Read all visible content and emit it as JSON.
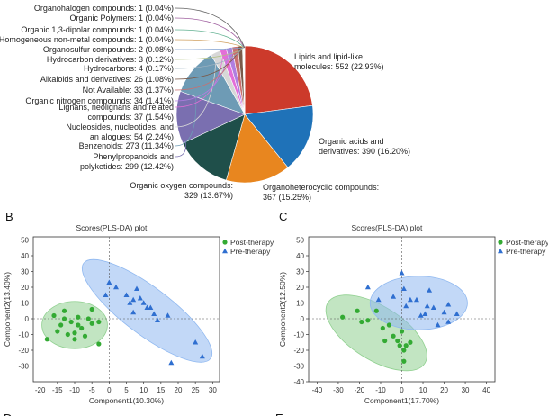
{
  "panel_labels": {
    "b": "B",
    "c": "C",
    "d": "D",
    "e": "E"
  },
  "chart_data": [
    {
      "type": "pie",
      "title": "",
      "slices": [
        {
          "name": "Lipids and lipid-like molecules",
          "count": 552,
          "percent": 22.93,
          "label": "Lipids and lipid-like molecules: 552 (22.93%)",
          "color": "#cc3a2b"
        },
        {
          "name": "Organic acids and derivatives",
          "count": 390,
          "percent": 16.2,
          "label": "Organic acids and derivatives: 390 (16.20%)",
          "color": "#1f72b8"
        },
        {
          "name": "Organoheterocyclic compounds",
          "count": 367,
          "percent": 15.25,
          "label": "Organoheterocyclic compounds: 367 (15.25%)",
          "color": "#e8861f"
        },
        {
          "name": "Organic oxygen compounds",
          "count": 329,
          "percent": 13.67,
          "label": "Organic oxygen compounds: 329 (13.67%)",
          "color": "#1f4f4a"
        },
        {
          "name": "Phenylpropanoids and polyketides",
          "count": 299,
          "percent": 12.42,
          "label": "Phenylpropanoids and polyketides: 299 (12.42%)",
          "color": "#7a6fb0"
        },
        {
          "name": "Benzenoids",
          "count": 273,
          "percent": 11.34,
          "label": "Benzenoids: 273 (11.34%)",
          "color": "#6e9bb5"
        },
        {
          "name": "Nucleosides, nucleotides, and analogues",
          "count": 54,
          "percent": 2.24,
          "label": "Nucleosides, nucleotides, and an alogues: 54 (2.24%)",
          "color": "#d7d7d7"
        },
        {
          "name": "Lignans, neolignans and related compounds",
          "count": 37,
          "percent": 1.54,
          "label": "Lignans, neolignans and related compounds: 37 (1.54%)",
          "color": "#e36fd8"
        },
        {
          "name": "Organic nitrogen compounds",
          "count": 34,
          "percent": 1.41,
          "label": "Organic nitrogen compounds: 34 (1.41%)",
          "color": "#b07ee0"
        },
        {
          "name": "Not Available",
          "count": 33,
          "percent": 1.37,
          "label": "Not Available: 33 (1.37%)",
          "color": "#c96f6f"
        },
        {
          "name": "Alkaloids and derivatives",
          "count": 26,
          "percent": 1.08,
          "label": "Alkaloids and derivatives: 26 (1.08%)",
          "color": "#7a5a4a"
        },
        {
          "name": "Hydrocarbons",
          "count": 4,
          "percent": 0.17,
          "label": "Hydrocarbons: 4 (0.17%)",
          "color": "#9ab0c0"
        },
        {
          "name": "Hydrocarbon derivatives",
          "count": 3,
          "percent": 0.12,
          "label": "Hydrocarbon derivatives: 3 (0.12%)",
          "color": "#b0c080"
        },
        {
          "name": "Organosulfur compounds",
          "count": 2,
          "percent": 0.08,
          "label": "Organosulfur compounds: 2 (0.08%)",
          "color": "#80a0d0"
        },
        {
          "name": "Homogeneous non-metal compounds",
          "count": 1,
          "percent": 0.04,
          "label": "Homogeneous non-metal compounds: 1 (0.04%)",
          "color": "#d0a060"
        },
        {
          "name": "Organic 1,3-dipolar compounds",
          "count": 1,
          "percent": 0.04,
          "label": "Organic 1,3-dipolar compounds: 1 (0.04%)",
          "color": "#60b090"
        },
        {
          "name": "Organic Polymers",
          "count": 1,
          "percent": 0.04,
          "label": "Organic Polymers: 1 (0.04%)",
          "color": "#a060a0"
        },
        {
          "name": "Organohalogen compounds",
          "count": 1,
          "percent": 0.04,
          "label": "Organohalogen compounds: 1 (0.04%)",
          "color": "#606060"
        }
      ]
    },
    {
      "type": "scatter",
      "title": "Scores(PLS-DA) plot",
      "xlabel": "Component1(10.30%)",
      "ylabel": "Component2(13.40%)",
      "xlim": [
        -22,
        32
      ],
      "ylim": [
        -40,
        52
      ],
      "xticks": [
        -20,
        -15,
        -10,
        -5,
        0,
        5,
        10,
        15,
        20,
        25,
        30
      ],
      "yticks": [
        -30,
        -20,
        -10,
        0,
        10,
        20,
        30,
        40,
        50
      ],
      "legend_position": "top-right",
      "series": [
        {
          "name": "Post-therapy",
          "marker": "circle",
          "color": "#33aa33",
          "points": [
            [
              -18,
              -13
            ],
            [
              -16,
              2
            ],
            [
              -15,
              -8
            ],
            [
              -14,
              -4
            ],
            [
              -13,
              0
            ],
            [
              -13,
              5
            ],
            [
              -12,
              -10
            ],
            [
              -11,
              -2
            ],
            [
              -10,
              -9
            ],
            [
              -10,
              -13
            ],
            [
              -9,
              1
            ],
            [
              -9,
              -4
            ],
            [
              -8,
              -6
            ],
            [
              -7,
              -11
            ],
            [
              -6,
              0
            ],
            [
              -5,
              -3
            ],
            [
              -5,
              6
            ],
            [
              -3,
              -2
            ],
            [
              -3,
              -16
            ]
          ]
        },
        {
          "name": "Pre-therapy",
          "marker": "triangle",
          "color": "#2f6fd0",
          "points": [
            [
              -1,
              15
            ],
            [
              0,
              23
            ],
            [
              2,
              20
            ],
            [
              5,
              15
            ],
            [
              6,
              10
            ],
            [
              7,
              12
            ],
            [
              7,
              4
            ],
            [
              8,
              19
            ],
            [
              9,
              13
            ],
            [
              10,
              10
            ],
            [
              11,
              7
            ],
            [
              12,
              7
            ],
            [
              13,
              3
            ],
            [
              14,
              -1
            ],
            [
              17,
              2
            ],
            [
              18,
              -28
            ],
            [
              25,
              -15
            ],
            [
              27,
              -24
            ]
          ]
        }
      ],
      "ellipses": [
        {
          "group": "Post-therapy",
          "color": "#8fd08f"
        },
        {
          "group": "Pre-therapy",
          "color": "#8fb8f0"
        }
      ]
    },
    {
      "type": "scatter",
      "title": "Scores(PLS-DA) plot",
      "xlabel": "Component1(17.70%)",
      "ylabel": "Component2(12.50%)",
      "xlim": [
        -44,
        44
      ],
      "ylim": [
        -40,
        52
      ],
      "xticks": [
        -40,
        -30,
        -20,
        -10,
        0,
        10,
        20,
        30,
        40
      ],
      "yticks": [
        -40,
        -30,
        -20,
        -10,
        0,
        10,
        20,
        30,
        40,
        50
      ],
      "legend_position": "top-right",
      "series": [
        {
          "name": "Post-therapy",
          "marker": "circle",
          "color": "#33aa33",
          "points": [
            [
              -28,
              1
            ],
            [
              -21,
              5
            ],
            [
              -19,
              -2
            ],
            [
              -16,
              -1
            ],
            [
              -12,
              5
            ],
            [
              -9,
              -6
            ],
            [
              -8,
              -14
            ],
            [
              -6,
              -4
            ],
            [
              -4,
              -11
            ],
            [
              -2,
              -14
            ],
            [
              -1,
              -17
            ],
            [
              0,
              -8
            ],
            [
              1,
              -20
            ],
            [
              1,
              -27
            ],
            [
              2,
              -17
            ],
            [
              4,
              -15
            ]
          ]
        },
        {
          "name": "Pre-therapy",
          "marker": "triangle",
          "color": "#2f6fd0",
          "points": [
            [
              -16,
              20
            ],
            [
              -11,
              12
            ],
            [
              -4,
              14
            ],
            [
              0,
              29
            ],
            [
              1,
              19
            ],
            [
              2,
              8
            ],
            [
              4,
              12
            ],
            [
              7,
              12
            ],
            [
              9,
              2
            ],
            [
              11,
              3
            ],
            [
              12,
              8
            ],
            [
              13,
              18
            ],
            [
              15,
              7
            ],
            [
              17,
              -4
            ],
            [
              20,
              4
            ],
            [
              22,
              -2
            ],
            [
              22,
              9
            ],
            [
              26,
              3
            ]
          ]
        }
      ],
      "ellipses": [
        {
          "group": "Post-therapy",
          "color": "#8fd08f"
        },
        {
          "group": "Pre-therapy",
          "color": "#8fb8f0"
        }
      ]
    }
  ]
}
